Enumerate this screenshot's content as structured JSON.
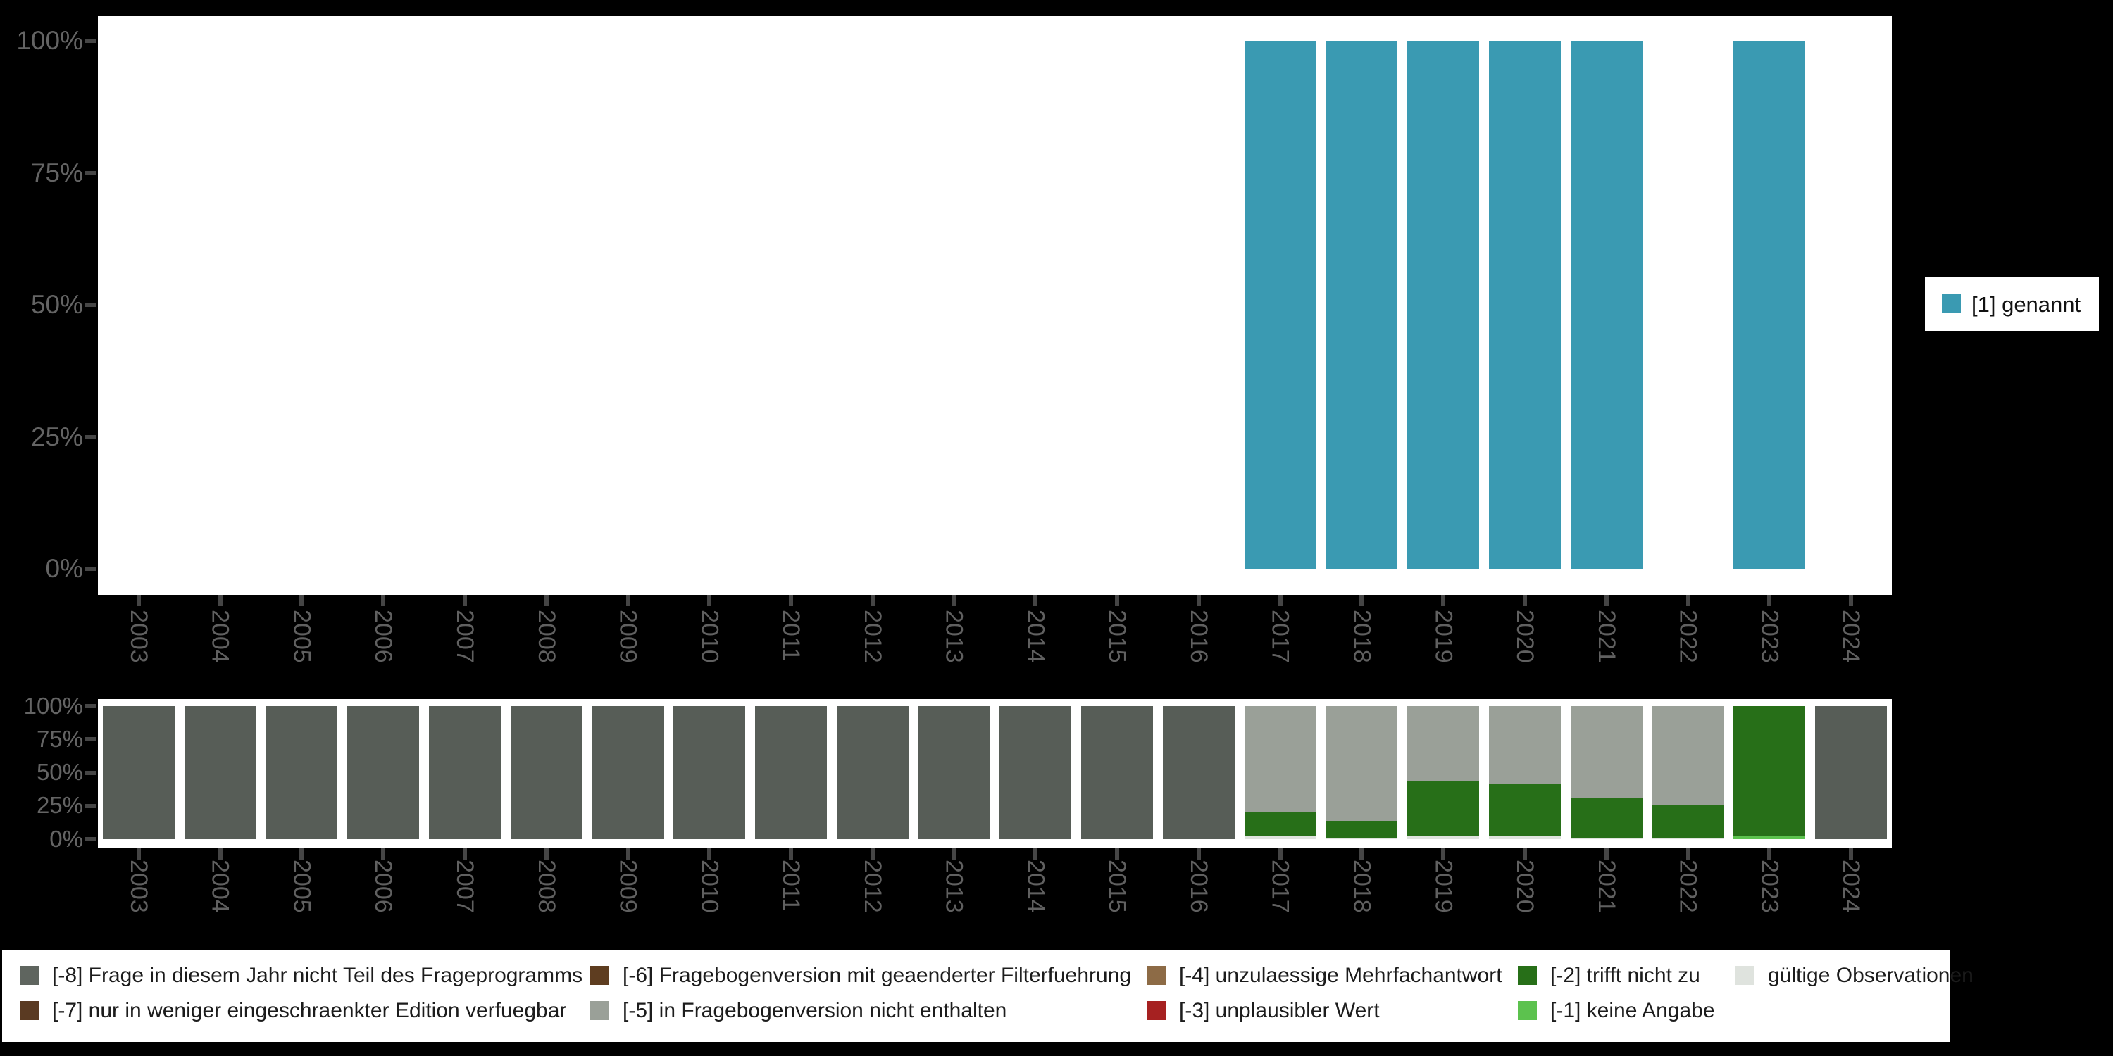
{
  "right_legend": {
    "label": "[1] genannt",
    "color": "#3a9ab2"
  },
  "bottom_legend": {
    "columns": [
      [
        {
          "label": "[-8] Frage in diesem Jahr nicht Teil des Frageprogramms",
          "color": "#5f655f"
        },
        {
          "label": "[-7] nur in weniger eingeschraenkter Edition verfuegbar",
          "color": "#5a3a22"
        }
      ],
      [
        {
          "label": "[-6] Fragebogenversion mit geaenderter Filterfuehrung",
          "color": "#5e3d20"
        },
        {
          "label": "[-5] in Fragebogenversion nicht enthalten",
          "color": "#9aa098"
        }
      ],
      [
        {
          "label": "[-4] unzulaessige Mehrfachantwort",
          "color": "#8d6b46"
        },
        {
          "label": "[-3] unplausibler Wert",
          "color": "#a62121"
        }
      ],
      [
        {
          "label": "[-2] trifft nicht zu",
          "color": "#276f18"
        },
        {
          "label": "[-1] keine Angabe",
          "color": "#5cc24e"
        }
      ],
      [
        {
          "label": "gültige Observationen",
          "color": "#dfe3de"
        }
      ]
    ]
  },
  "chart_data": [
    {
      "type": "bar",
      "title": "",
      "xlabel": "",
      "ylabel": "",
      "ylim": [
        0,
        100
      ],
      "yticks": [
        "0%",
        "25%",
        "50%",
        "75%",
        "100%"
      ],
      "ytick_values": [
        0,
        25,
        50,
        75,
        100
      ],
      "grid": false,
      "legend_position": "right",
      "categories": [
        "2003",
        "2004",
        "2005",
        "2006",
        "2007",
        "2008",
        "2009",
        "2010",
        "2011",
        "2012",
        "2013",
        "2014",
        "2015",
        "2016",
        "2017",
        "2018",
        "2019",
        "2020",
        "2021",
        "2022",
        "2023",
        "2024"
      ],
      "series": [
        {
          "name": "[1] genannt",
          "color": "#3a9ab2",
          "values": [
            null,
            null,
            null,
            null,
            null,
            null,
            null,
            null,
            null,
            null,
            null,
            null,
            null,
            null,
            100,
            100,
            100,
            100,
            100,
            null,
            100,
            null
          ]
        }
      ]
    },
    {
      "type": "stacked_bar_percent",
      "title": "",
      "xlabel": "",
      "ylabel": "",
      "ylim": [
        0,
        100
      ],
      "yticks": [
        "0%",
        "25%",
        "50%",
        "75%",
        "100%"
      ],
      "ytick_values": [
        0,
        25,
        50,
        75,
        100
      ],
      "grid": false,
      "legend_position": "bottom",
      "categories": [
        "2003",
        "2004",
        "2005",
        "2006",
        "2007",
        "2008",
        "2009",
        "2010",
        "2011",
        "2012",
        "2013",
        "2014",
        "2015",
        "2016",
        "2017",
        "2018",
        "2019",
        "2020",
        "2021",
        "2022",
        "2023",
        "2024"
      ],
      "series": [
        {
          "name": "gültige Observationen",
          "color": "#dfe3de",
          "values": [
            0,
            0,
            0,
            0,
            0,
            0,
            0,
            0,
            0,
            0,
            0,
            0,
            0,
            0,
            2,
            1,
            2,
            2,
            1,
            1,
            0,
            0
          ]
        },
        {
          "name": "[-1] keine Angabe",
          "color": "#5cc24e",
          "values": [
            0,
            0,
            0,
            0,
            0,
            0,
            0,
            0,
            0,
            0,
            0,
            0,
            0,
            0,
            0,
            0,
            0,
            0,
            0,
            0,
            2,
            0
          ]
        },
        {
          "name": "[-2] trifft nicht zu",
          "color": "#276f18",
          "values": [
            0,
            0,
            0,
            0,
            0,
            0,
            0,
            0,
            0,
            0,
            0,
            0,
            0,
            0,
            18,
            13,
            42,
            40,
            30,
            25,
            98,
            0
          ]
        },
        {
          "name": "[-3] unplausibler Wert",
          "color": "#a62121",
          "values": [
            0,
            0,
            0,
            0,
            0,
            0,
            0,
            0,
            0,
            0,
            0,
            0,
            0,
            0,
            0,
            0,
            0,
            0,
            0,
            0,
            0,
            0
          ]
        },
        {
          "name": "[-4] unzulaessige Mehrfachantwort",
          "color": "#8d6b46",
          "values": [
            0,
            0,
            0,
            0,
            0,
            0,
            0,
            0,
            0,
            0,
            0,
            0,
            0,
            0,
            0,
            0,
            0,
            0,
            0,
            0,
            0,
            0
          ]
        },
        {
          "name": "[-5] in Fragebogenversion nicht enthalten",
          "color": "#9aa098",
          "values": [
            0,
            0,
            0,
            0,
            0,
            0,
            0,
            0,
            0,
            0,
            0,
            0,
            0,
            0,
            80,
            86,
            56,
            58,
            69,
            74,
            0,
            0
          ]
        },
        {
          "name": "[-6] Fragebogenversion mit geaenderter Filterfuehrung",
          "color": "#5e3d20",
          "values": [
            0,
            0,
            0,
            0,
            0,
            0,
            0,
            0,
            0,
            0,
            0,
            0,
            0,
            0,
            0,
            0,
            0,
            0,
            0,
            0,
            0,
            0
          ]
        },
        {
          "name": "[-7] nur in weniger eingeschraenkter Edition verfuegbar",
          "color": "#5a3a22",
          "values": [
            0,
            0,
            0,
            0,
            0,
            0,
            0,
            0,
            0,
            0,
            0,
            0,
            0,
            0,
            0,
            0,
            0,
            0,
            0,
            0,
            0,
            0
          ]
        },
        {
          "name": "[-8] Frage in diesem Jahr nicht Teil des Frageprogramms",
          "color": "#575d57",
          "values": [
            100,
            100,
            100,
            100,
            100,
            100,
            100,
            100,
            100,
            100,
            100,
            100,
            100,
            100,
            0,
            0,
            0,
            0,
            0,
            0,
            0,
            100
          ]
        }
      ]
    }
  ]
}
